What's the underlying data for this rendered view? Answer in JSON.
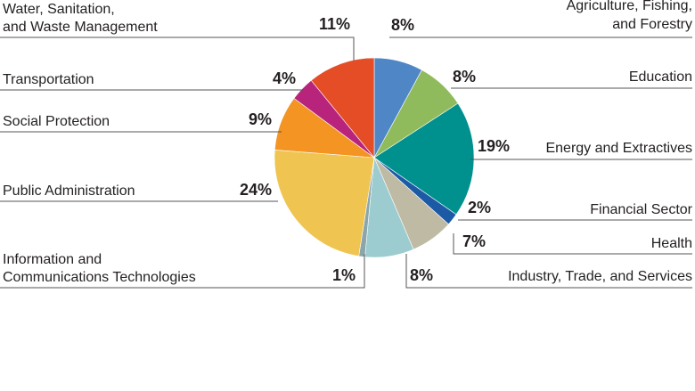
{
  "chart_data": {
    "type": "pie",
    "title": "",
    "slices": [
      {
        "label": "Agriculture, Fishing, and Forestry",
        "label_lines": [
          "Agriculture, Fishing,",
          "and Forestry"
        ],
        "value": 8,
        "value_label": "8%",
        "color": "#4f86c6"
      },
      {
        "label": "Education",
        "label_lines": [
          "Education"
        ],
        "value": 8,
        "value_label": "8%",
        "color": "#8fbb5c"
      },
      {
        "label": "Energy and Extractives",
        "label_lines": [
          "Energy and Extractives"
        ],
        "value": 19,
        "value_label": "19%",
        "color": "#00918e"
      },
      {
        "label": "Financial Sector",
        "label_lines": [
          "Financial Sector"
        ],
        "value": 2,
        "value_label": "2%",
        "color": "#1c5aa6"
      },
      {
        "label": "Health",
        "label_lines": [
          "Health"
        ],
        "value": 7,
        "value_label": "7%",
        "color": "#bfbaa4"
      },
      {
        "label": "Industry, Trade, and Services",
        "label_lines": [
          "Industry, Trade, and Services"
        ],
        "value": 8,
        "value_label": "8%",
        "color": "#9ccccf"
      },
      {
        "label": "Information and Communications Technologies",
        "label_lines": [
          "Information and",
          "Communications Technologies"
        ],
        "value": 1,
        "value_label": "1%",
        "color": "#8aa6ab"
      },
      {
        "label": "Public Administration",
        "label_lines": [
          "Public Administration"
        ],
        "value": 24,
        "value_label": "24%",
        "color": "#efc451"
      },
      {
        "label": "Social Protection",
        "label_lines": [
          "Social Protection"
        ],
        "value": 9,
        "value_label": "9%",
        "color": "#f39423"
      },
      {
        "label": "Transportation",
        "label_lines": [
          "Transportation"
        ],
        "value": 4,
        "value_label": "4%",
        "color": "#b8247c"
      },
      {
        "label": "Water, Sanitation, and Waste Management",
        "label_lines": [
          "Water, Sanitation,",
          "and Waste Management"
        ],
        "value": 11,
        "value_label": "11%",
        "color": "#e44d26"
      }
    ]
  }
}
